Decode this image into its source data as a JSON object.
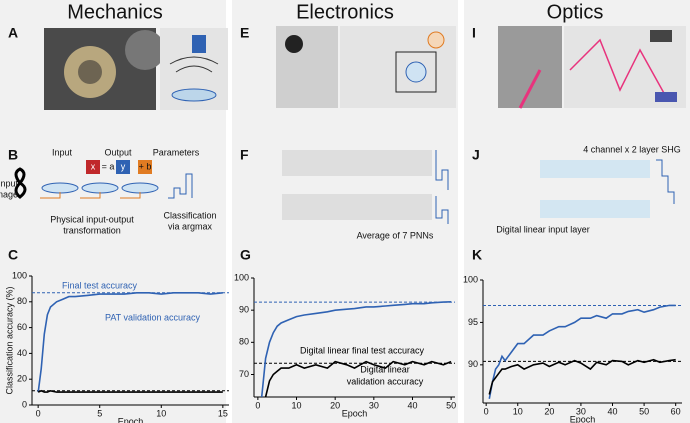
{
  "columns": [
    "Mechanics",
    "Electronics",
    "Optics"
  ],
  "panel_letters": [
    "A",
    "E",
    "I",
    "B",
    "F",
    "J",
    "C",
    "G",
    "K"
  ],
  "diagram_b": {
    "input": "Input",
    "output": "Output",
    "parameters": "Parameters",
    "input_image": [
      "Input",
      "image"
    ],
    "transformation": [
      "Physical input-output",
      "transformation"
    ],
    "classification": [
      "Classification",
      "via argmax"
    ],
    "equation": [
      "x",
      "= a",
      "y",
      "+ b"
    ]
  },
  "diagram_f": {
    "average": "Average of 7 PNNs"
  },
  "diagram_j": {
    "shg": "4 channel x 2 layer SHG",
    "input_layer": "Digital linear input layer"
  },
  "chart_data": [
    {
      "type": "line",
      "xlabel": "Epoch",
      "ylabel": "Classification accuracy (%)",
      "x": [
        0,
        0.25,
        0.5,
        0.75,
        1,
        1.5,
        2,
        2.5,
        3,
        4,
        5,
        6,
        7,
        8,
        9,
        10,
        11,
        12,
        13,
        14,
        15
      ],
      "series": [
        {
          "color": "#2f62b3",
          "values": [
            10,
            28,
            55,
            70,
            76,
            80,
            82,
            84,
            84,
            85,
            86,
            86,
            86,
            87,
            87,
            86,
            87,
            87,
            87,
            86,
            87
          ]
        },
        {
          "color": "#000000",
          "values": [
            10,
            11,
            10,
            10,
            11,
            10,
            10,
            10,
            10,
            10,
            10,
            10,
            10,
            10,
            10,
            10,
            10,
            10,
            10,
            10,
            10
          ]
        }
      ],
      "hlines": [
        {
          "value": 87,
          "color": "#2f62b3"
        },
        {
          "value": 11,
          "color": "#000000"
        }
      ],
      "annotations": [
        {
          "text": "Final test accuracy",
          "color": "#2f62b3"
        },
        {
          "text": "PAT validation accuracy",
          "color": "#2f62b3"
        }
      ],
      "xlim": [
        -0.5,
        15.5
      ],
      "xticks": [
        0,
        5,
        10,
        15
      ],
      "ylim": [
        0,
        100
      ],
      "yticks": [
        0,
        20,
        40,
        60,
        80,
        100
      ]
    },
    {
      "type": "line",
      "xlabel": "Epoch",
      "x": [
        1,
        2,
        3,
        4,
        5,
        6,
        8,
        10,
        12,
        15,
        18,
        20,
        23,
        25,
        28,
        30,
        33,
        35,
        38,
        40,
        43,
        45,
        48,
        50
      ],
      "series": [
        {
          "color": "#2f62b3",
          "values": [
            63,
            75,
            80,
            83,
            85,
            86,
            87,
            88,
            88.5,
            89,
            89.5,
            90,
            90.3,
            90.5,
            91,
            91,
            91.3,
            91.5,
            91.8,
            92,
            92,
            92.3,
            92.5,
            92.6
          ]
        },
        {
          "color": "#000000",
          "values": [
            null,
            63,
            68,
            70,
            71,
            72,
            72,
            73,
            72,
            73,
            72,
            74,
            73,
            72,
            74,
            73,
            72,
            74,
            73,
            74,
            73,
            74,
            73,
            74
          ]
        }
      ],
      "hlines": [
        {
          "value": 92.5,
          "color": "#2f62b3"
        },
        {
          "value": 73.5,
          "color": "#000000"
        }
      ],
      "annotations": [
        {
          "text": "Digital linear final test accuracy",
          "color": "#000000"
        },
        {
          "text": "Digital linear",
          "color": "#000000"
        },
        {
          "text": "validation accuracy",
          "color": "#000000"
        }
      ],
      "xlim": [
        -1,
        51
      ],
      "xticks": [
        0,
        10,
        20,
        30,
        40,
        50
      ],
      "ylim": [
        63,
        100
      ],
      "yticks": [
        70,
        80,
        90,
        100
      ]
    },
    {
      "type": "line",
      "xlabel": "Epoch",
      "x": [
        1,
        2,
        3,
        4,
        5,
        6,
        8,
        10,
        12,
        15,
        18,
        20,
        23,
        25,
        28,
        30,
        33,
        35,
        38,
        40,
        43,
        45,
        48,
        50,
        53,
        55,
        58,
        60
      ],
      "series": [
        {
          "color": "#2f62b3",
          "values": [
            86,
            88,
            89.5,
            90,
            91,
            90.5,
            91.5,
            92.5,
            92.5,
            93.5,
            93.5,
            94,
            94.5,
            94.5,
            95,
            95.5,
            95.5,
            95.8,
            95.5,
            96,
            96,
            96.3,
            96.5,
            96.2,
            96.5,
            96.8,
            97,
            97
          ]
        },
        {
          "color": "#000000",
          "values": [
            86.5,
            88,
            88.5,
            89,
            89.5,
            89.5,
            89.8,
            90,
            89.5,
            90,
            90.2,
            89.8,
            90.3,
            90,
            90.5,
            90.2,
            89.5,
            90.3,
            90,
            90.5,
            90.4,
            90,
            90.5,
            90.3,
            90.6,
            90.3,
            90.5,
            90.6
          ]
        }
      ],
      "hlines": [
        {
          "value": 97,
          "color": "#2f62b3"
        },
        {
          "value": 90.4,
          "color": "#000000"
        }
      ],
      "annotations": [],
      "xlim": [
        -1,
        62
      ],
      "xticks": [
        0,
        10,
        20,
        30,
        40,
        50,
        60
      ],
      "ylim": [
        85.5,
        100
      ],
      "yticks": [
        90,
        95,
        100
      ]
    }
  ]
}
